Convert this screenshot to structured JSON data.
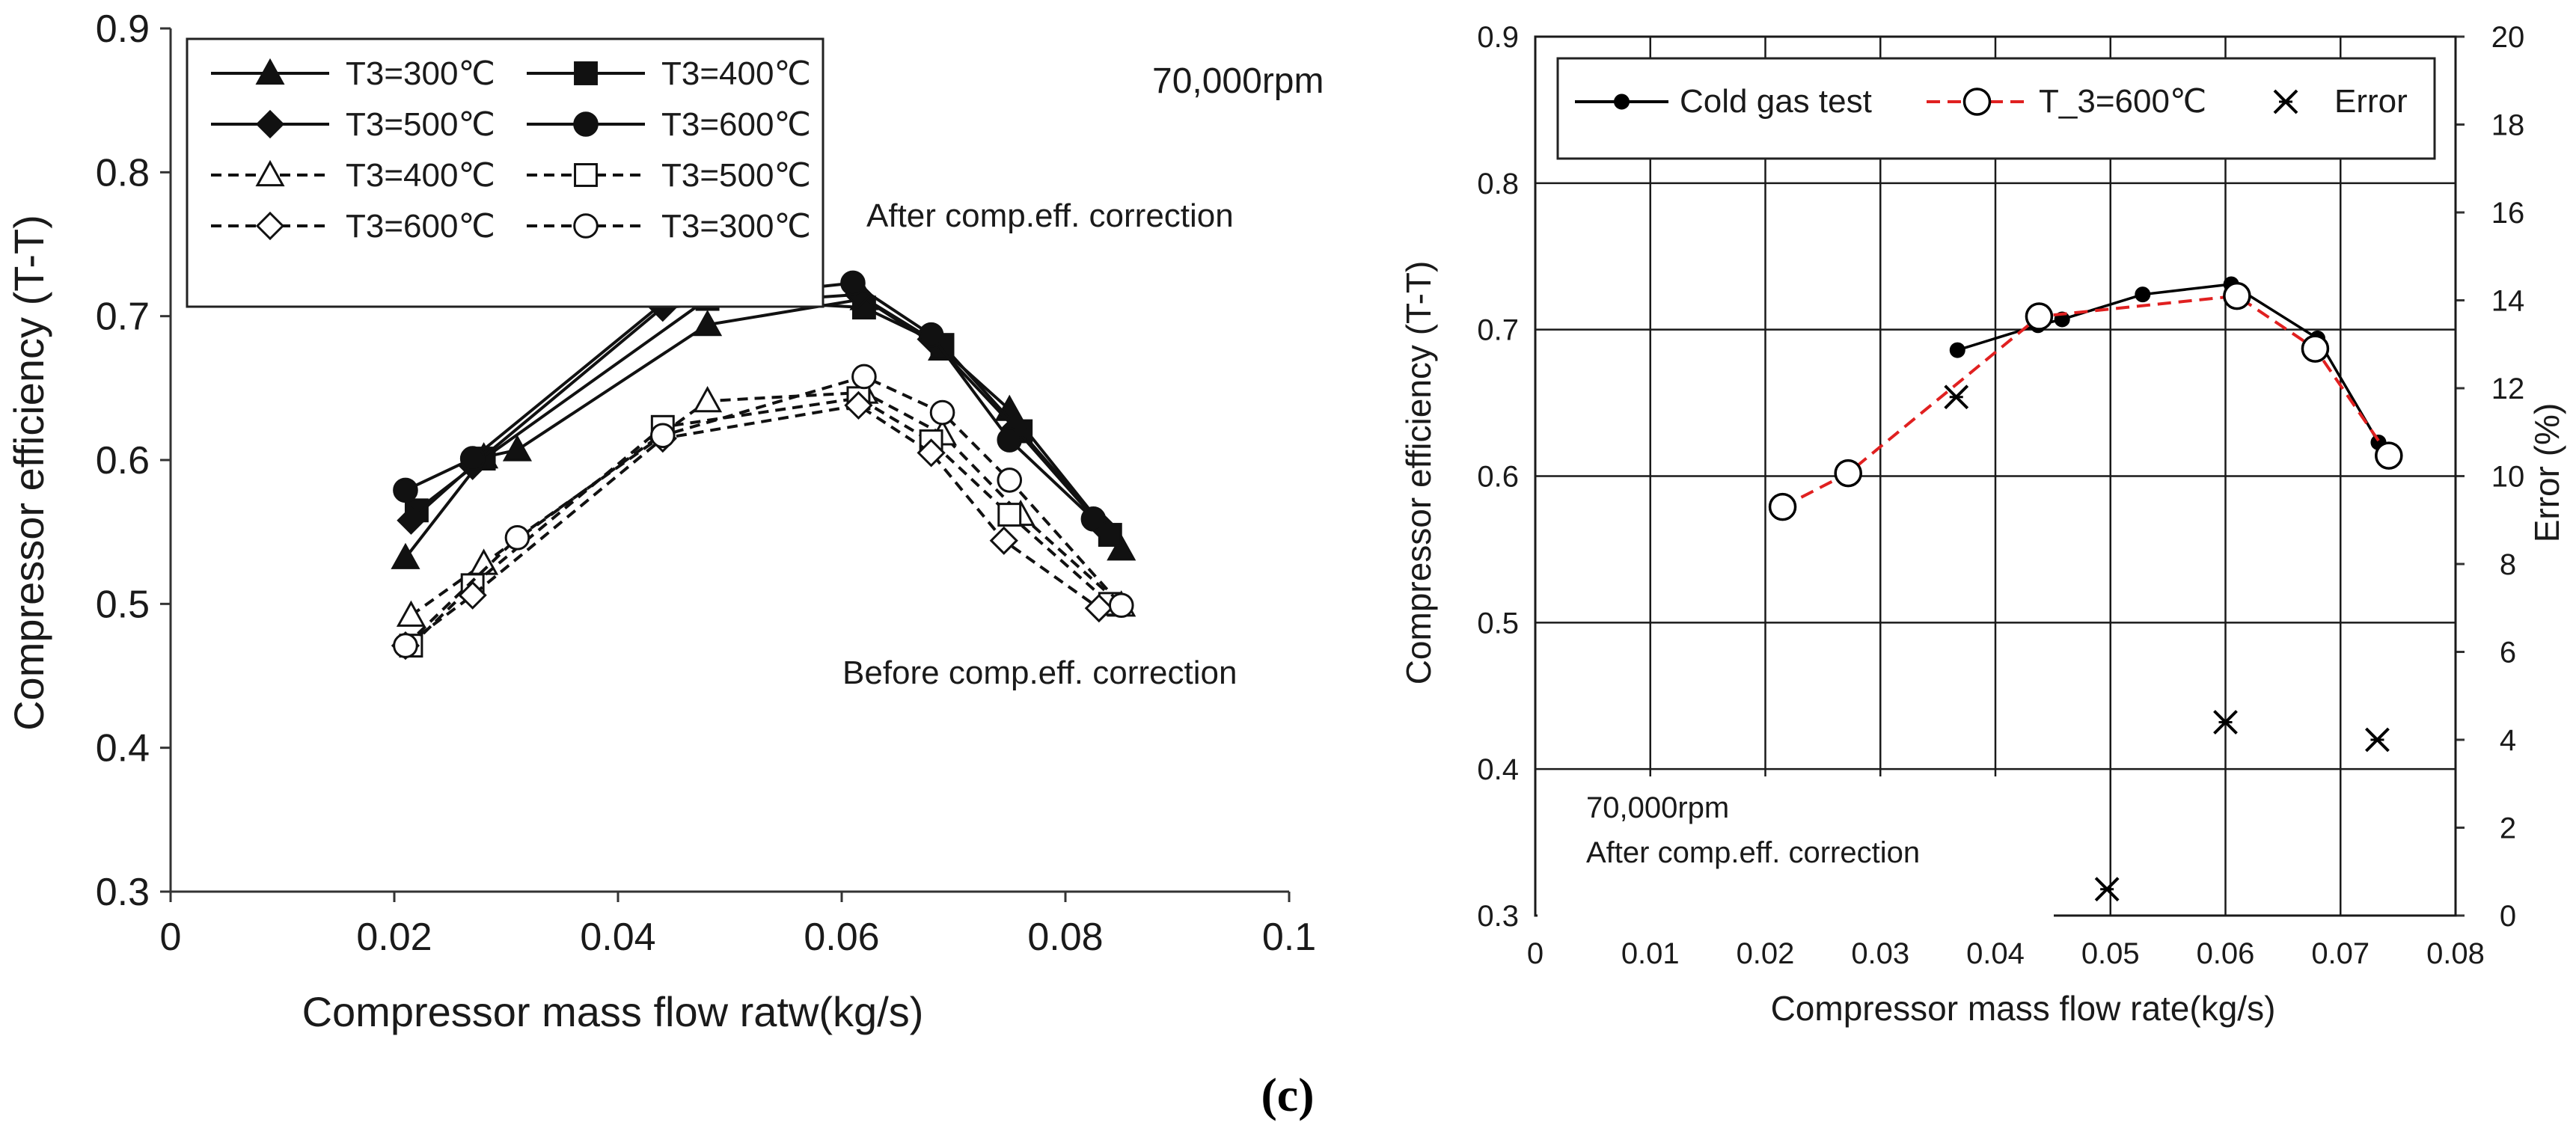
{
  "figure_caption": "(c)",
  "chart_data": [
    {
      "type": "line",
      "xlabel": "Compressor mass flow ratw(kg/s)",
      "ylabel": "Compressor efficiency (T-T)",
      "xlim": [
        0,
        0.1
      ],
      "ylim": [
        0.3,
        0.9
      ],
      "xticks": [
        "0",
        "0.02",
        "0.04",
        "0.06",
        "0.08",
        "0.1"
      ],
      "yticks": [
        "0.3",
        "0.4",
        "0.5",
        "0.6",
        "0.7",
        "0.8",
        "0.9"
      ],
      "grid": false,
      "legend_position": "top-left",
      "annotations": [
        "70,000rpm",
        "After comp.eff. correction",
        "Before comp.eff. correction"
      ],
      "series": [
        {
          "name": "T3=300℃",
          "style": "solid",
          "marker": "triangle",
          "fill": "filled",
          "x": [
            0.021,
            0.028,
            0.031,
            0.048,
            0.062,
            0.069,
            0.075,
            0.085
          ],
          "y": [
            0.532,
            0.602,
            0.607,
            0.694,
            0.712,
            0.677,
            0.635,
            0.538
          ]
        },
        {
          "name": "T3=400℃",
          "style": "solid",
          "marker": "square",
          "fill": "filled",
          "x": [
            0.022,
            0.028,
            0.048,
            0.062,
            0.069,
            0.076,
            0.084
          ],
          "y": [
            0.565,
            0.601,
            0.712,
            0.706,
            0.68,
            0.62,
            0.548
          ]
        },
        {
          "name": "T3=500℃",
          "style": "solid",
          "marker": "diamond",
          "fill": "filled",
          "x": [
            0.0215,
            0.027,
            0.044,
            0.0615,
            0.068,
            0.0755,
            0.083
          ],
          "y": [
            0.558,
            0.596,
            0.706,
            0.715,
            0.684,
            0.622,
            0.556
          ]
        },
        {
          "name": "T3=600℃",
          "style": "solid",
          "marker": "circle",
          "fill": "filled",
          "x": [
            0.021,
            0.027,
            0.044,
            0.061,
            0.068,
            0.075,
            0.0825
          ],
          "y": [
            0.579,
            0.601,
            0.709,
            0.723,
            0.687,
            0.614,
            0.559
          ]
        },
        {
          "name": "T3=400℃",
          "style": "dashed",
          "marker": "triangle",
          "fill": "open",
          "x": [
            0.0215,
            0.028,
            0.048,
            0.062,
            0.069,
            0.076,
            0.085
          ],
          "y": [
            0.492,
            0.528,
            0.641,
            0.647,
            0.618,
            0.562,
            0.499
          ]
        },
        {
          "name": "T3=500℃",
          "style": "dashed",
          "marker": "square",
          "fill": "open",
          "x": [
            0.0215,
            0.027,
            0.044,
            0.0615,
            0.068,
            0.075,
            0.084
          ],
          "y": [
            0.471,
            0.513,
            0.623,
            0.643,
            0.613,
            0.562,
            0.5
          ]
        },
        {
          "name": "T3=600℃",
          "style": "dashed",
          "marker": "diamond",
          "fill": "open",
          "x": [
            0.021,
            0.027,
            0.044,
            0.0615,
            0.068,
            0.0745,
            0.083
          ],
          "y": [
            0.471,
            0.506,
            0.615,
            0.638,
            0.605,
            0.544,
            0.497
          ]
        },
        {
          "name": "T3=300℃",
          "style": "dashed",
          "marker": "circle",
          "fill": "open",
          "x": [
            0.021,
            0.031,
            0.044,
            0.062,
            0.069,
            0.075,
            0.085
          ],
          "y": [
            0.471,
            0.546,
            0.617,
            0.658,
            0.633,
            0.586,
            0.499
          ]
        }
      ]
    },
    {
      "type": "line",
      "xlabel": "Compressor mass flow rate(kg/s)",
      "ylabel": "Compressor efficiency (T-T)",
      "y2label": "Error (%)",
      "xlim": [
        0,
        0.08
      ],
      "ylim": [
        0.3,
        0.9
      ],
      "y2lim": [
        0,
        20
      ],
      "xticks": [
        "0",
        "0.01",
        "0.02",
        "0.03",
        "0.04",
        "0.05",
        "0.06",
        "0.07",
        "0.08"
      ],
      "yticks": [
        "0.3",
        "0.4",
        "0.5",
        "0.6",
        "0.7",
        "0.8",
        "0.9"
      ],
      "y2ticks": [
        "0",
        "2",
        "4",
        "6",
        "8",
        "10",
        "12",
        "14",
        "16",
        "18",
        "20"
      ],
      "grid": true,
      "legend_position": "top",
      "annotations": [
        "70,000rpm",
        "After comp.eff. correction"
      ],
      "series": [
        {
          "name": "Cold gas test",
          "style": "solid",
          "color": "#000000",
          "marker": "dot",
          "axis": "left",
          "x": [
            0.0367,
            0.0437,
            0.0458,
            0.0528,
            0.0605,
            0.068,
            0.0733
          ],
          "y": [
            0.686,
            0.703,
            0.707,
            0.724,
            0.731,
            0.694,
            0.623
          ]
        },
        {
          "name": "T_3=600℃",
          "style": "dashed",
          "color": "#e02020",
          "marker": "open-circle",
          "axis": "left",
          "x": [
            0.0215,
            0.0272,
            0.0438,
            0.061,
            0.0678,
            0.0742
          ],
          "y": [
            0.579,
            0.602,
            0.709,
            0.723,
            0.687,
            0.614
          ]
        },
        {
          "name": "Error",
          "style": "none",
          "color": "#000000",
          "marker": "asterisk",
          "axis": "right",
          "x": [
            0.0366,
            0.0497,
            0.06,
            0.0732
          ],
          "y": [
            11.8,
            0.6,
            4.4,
            4.0
          ]
        }
      ]
    }
  ]
}
